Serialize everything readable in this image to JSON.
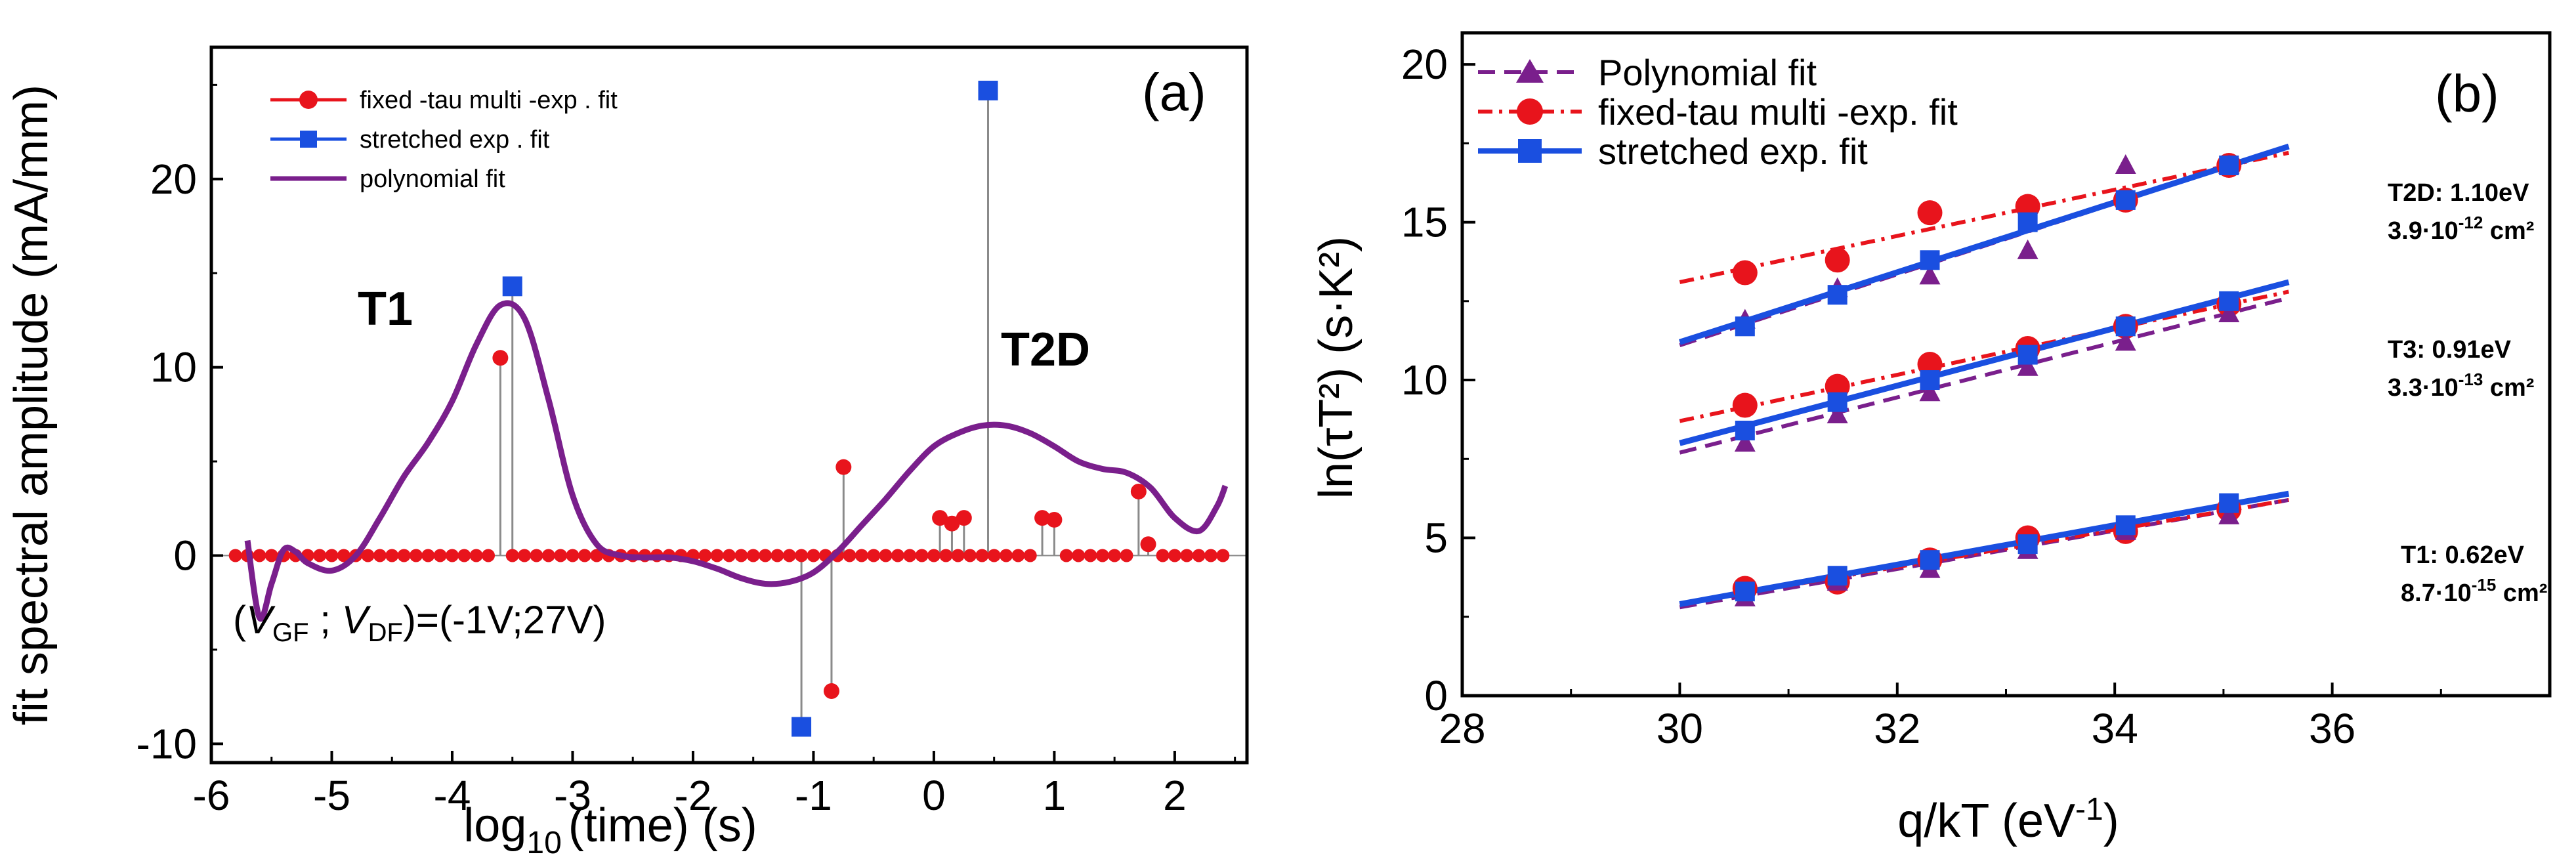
{
  "colors": {
    "red": "#e8141c",
    "blue": "#1a4fe0",
    "purple": "#7a1f8c",
    "stem": "#8a8a8a",
    "axis": "#000000"
  },
  "chart_data": [
    {
      "id": "a",
      "type": "stem+line",
      "panel_label": "(a)",
      "xlabel_main": "log",
      "xlabel_sub": "10",
      "xlabel_rest": "(time) (s)",
      "ylabel": "fit spectral amplitude (mA/mm)",
      "xlim": [
        -6,
        2.6
      ],
      "ylim": [
        -11,
        27
      ],
      "xticks": [
        -6,
        -5,
        -4,
        -3,
        -2,
        -1,
        0,
        1,
        2
      ],
      "xtick_labels": [
        "-6",
        "-5",
        "-4",
        "-3",
        "-2",
        "-1",
        "0",
        "1",
        "2"
      ],
      "yticks": [
        -10,
        0,
        10,
        20
      ],
      "ytick_labels": [
        "-10",
        "0",
        "10",
        "20"
      ],
      "legend": [
        {
          "label": "fixed -tau  multi -exp . fit",
          "color": "red",
          "marker": "circle"
        },
        {
          "label": "stretched     exp . fit",
          "color": "blue",
          "marker": "square"
        },
        {
          "label": "polynomial     fit",
          "color": "purple",
          "marker": "line"
        }
      ],
      "annotations": {
        "t1": "T1",
        "t2d": "T2D",
        "cond_open": "(",
        "cond_v1": "V",
        "cond_sub1": "GF",
        "cond_mid": " ; ",
        "cond_v2": "V",
        "cond_sub2": "DF",
        "cond_close": ")=(-1V;27V)"
      },
      "red_baseline_range": [
        -5.8,
        2.45
      ],
      "red_baseline_step": 0.1,
      "red_stems": [
        {
          "x": -3.6,
          "y": 10.5
        },
        {
          "x": -0.85,
          "y": -7.2
        },
        {
          "x": -0.75,
          "y": 4.7
        },
        {
          "x": 0.05,
          "y": 2.0
        },
        {
          "x": 0.15,
          "y": 1.7
        },
        {
          "x": 0.25,
          "y": 2.0
        },
        {
          "x": 0.9,
          "y": 2.0
        },
        {
          "x": 1.0,
          "y": 1.9
        },
        {
          "x": 1.7,
          "y": 3.4
        },
        {
          "x": 1.78,
          "y": 0.6
        }
      ],
      "blue_stems": [
        {
          "x": -3.5,
          "y": 14.3
        },
        {
          "x": -1.1,
          "y": -9.1
        },
        {
          "x": 0.45,
          "y": 24.7
        }
      ],
      "polynomial_curve": [
        [
          -5.7,
          0.8
        ],
        [
          -5.6,
          -3.3
        ],
        [
          -5.5,
          -1.5
        ],
        [
          -5.4,
          0.3
        ],
        [
          -5.3,
          0.2
        ],
        [
          -5.2,
          -0.4
        ],
        [
          -5.0,
          -0.8
        ],
        [
          -4.8,
          0.0
        ],
        [
          -4.6,
          2.0
        ],
        [
          -4.4,
          4.2
        ],
        [
          -4.2,
          6.0
        ],
        [
          -4.0,
          8.2
        ],
        [
          -3.8,
          11.2
        ],
        [
          -3.6,
          13.3
        ],
        [
          -3.4,
          12.6
        ],
        [
          -3.2,
          8.3
        ],
        [
          -3.0,
          3.2
        ],
        [
          -2.8,
          0.6
        ],
        [
          -2.6,
          0.0
        ],
        [
          -2.4,
          -0.1
        ],
        [
          -2.2,
          -0.1
        ],
        [
          -2.0,
          -0.3
        ],
        [
          -1.8,
          -0.7
        ],
        [
          -1.6,
          -1.2
        ],
        [
          -1.4,
          -1.5
        ],
        [
          -1.2,
          -1.4
        ],
        [
          -1.0,
          -0.9
        ],
        [
          -0.8,
          0.2
        ],
        [
          -0.6,
          1.6
        ],
        [
          -0.4,
          3.0
        ],
        [
          -0.2,
          4.5
        ],
        [
          0.0,
          5.8
        ],
        [
          0.2,
          6.5
        ],
        [
          0.4,
          6.9
        ],
        [
          0.6,
          6.9
        ],
        [
          0.8,
          6.5
        ],
        [
          1.0,
          5.8
        ],
        [
          1.2,
          5.0
        ],
        [
          1.4,
          4.6
        ],
        [
          1.6,
          4.4
        ],
        [
          1.8,
          3.6
        ],
        [
          2.0,
          2.0
        ],
        [
          2.2,
          1.3
        ],
        [
          2.35,
          2.6
        ],
        [
          2.42,
          3.7
        ]
      ]
    },
    {
      "id": "b",
      "type": "scatter+line",
      "panel_label": "(b)",
      "xlabel_main": "q/kT (eV",
      "xlabel_sup": "-1",
      "xlabel_close": ")",
      "ylabel": "ln(τT²) (s·K²)",
      "xlim": [
        28,
        38
      ],
      "ylim": [
        0,
        21
      ],
      "xticks": [
        28,
        30,
        32,
        34,
        36
      ],
      "xtick_labels": [
        "28",
        "30",
        "32",
        "34",
        "36"
      ],
      "yticks": [
        0,
        5,
        10,
        15,
        20
      ],
      "ytick_labels": [
        "0",
        "5",
        "10",
        "15",
        "20"
      ],
      "legend": [
        {
          "label": "Polynomial   fit",
          "color": "purple",
          "style": "dashed",
          "marker": "triangle"
        },
        {
          "label": "fixed-tau  multi -exp. fit",
          "color": "red",
          "style": "dashdot",
          "marker": "circle"
        },
        {
          "label": "stretched   exp. fit",
          "color": "blue",
          "style": "solid",
          "marker": "square"
        }
      ],
      "x": [
        30.6,
        31.45,
        32.3,
        33.2,
        34.1,
        35.05
      ],
      "line_x": [
        30,
        35.6
      ],
      "traps": [
        {
          "name": "T2D",
          "label_line1": "T2D: 1.10eV",
          "label_line2_pre": "3.9·10",
          "label_line2_exp": "-12",
          "label_line2_post": " cm²",
          "polynomial": [
            11.9,
            12.9,
            13.3,
            14.1,
            16.8,
            16.8
          ],
          "fixed": [
            13.4,
            13.8,
            15.3,
            15.5,
            15.7,
            16.8
          ],
          "stretched": [
            11.7,
            12.7,
            13.8,
            15.0,
            15.7,
            16.8
          ],
          "poly_line": [
            11.1,
            17.4
          ],
          "fixed_line": [
            13.1,
            17.2
          ],
          "stretched_line": [
            11.2,
            17.4
          ]
        },
        {
          "name": "T3",
          "label_line1": "T3: 0.91eV",
          "label_line2_pre": "3.3·10",
          "label_line2_exp": "-13",
          "label_line2_post": " cm²",
          "polynomial": [
            8.0,
            8.9,
            9.6,
            10.4,
            11.2,
            12.1
          ],
          "fixed": [
            9.2,
            9.8,
            10.5,
            11.0,
            11.7,
            12.4
          ],
          "stretched": [
            8.4,
            9.3,
            10.0,
            10.8,
            11.7,
            12.5
          ],
          "poly_line": [
            7.7,
            12.6
          ],
          "fixed_line": [
            8.7,
            12.8
          ],
          "stretched_line": [
            8.0,
            13.1
          ]
        },
        {
          "name": "T1",
          "label_line1": "T1: 0.62eV",
          "label_line2_pre": "8.7·10",
          "label_line2_exp": "-15",
          "label_line2_post": " cm²",
          "polynomial": [
            3.1,
            3.6,
            4.0,
            4.6,
            5.2,
            5.7
          ],
          "fixed": [
            3.4,
            3.6,
            4.3,
            5.0,
            5.2,
            5.9
          ],
          "stretched": [
            3.3,
            3.8,
            4.3,
            4.8,
            5.4,
            6.1
          ],
          "poly_line": [
            2.8,
            6.2
          ],
          "fixed_line": [
            2.9,
            6.2
          ],
          "stretched_line": [
            2.9,
            6.4
          ]
        }
      ]
    }
  ]
}
